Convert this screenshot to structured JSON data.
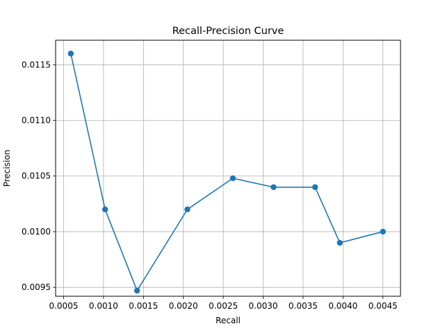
{
  "chart_data": {
    "type": "line",
    "title": "Recall-Precision Curve",
    "xlabel": "Recall",
    "ylabel": "Precision",
    "xlim": [
      0.0004,
      0.00472
    ],
    "ylim": [
      0.00942,
      0.01172
    ],
    "grid": true,
    "color": "#1f77b4",
    "x_ticks": [
      0.0005,
      0.001,
      0.0015,
      0.002,
      0.0025,
      0.003,
      0.0035,
      0.004,
      0.0045
    ],
    "x_tick_labels": [
      "0.0005",
      "0.0010",
      "0.0015",
      "0.0020",
      "0.0025",
      "0.0030",
      "0.0035",
      "0.0040",
      "0.0045"
    ],
    "y_ticks": [
      0.0095,
      0.01,
      0.0105,
      0.011,
      0.0115
    ],
    "y_tick_labels": [
      "0.0095",
      "0.0100",
      "0.0105",
      "0.0110",
      "0.0115"
    ],
    "series": [
      {
        "x": [
          0.00059,
          0.00102,
          0.00142,
          0.00205,
          0.00262,
          0.00313,
          0.00365,
          0.00396,
          0.0045
        ],
        "y": [
          0.0116,
          0.0102,
          0.00947,
          0.0102,
          0.01048,
          0.0104,
          0.0104,
          0.0099,
          0.01
        ]
      }
    ]
  }
}
